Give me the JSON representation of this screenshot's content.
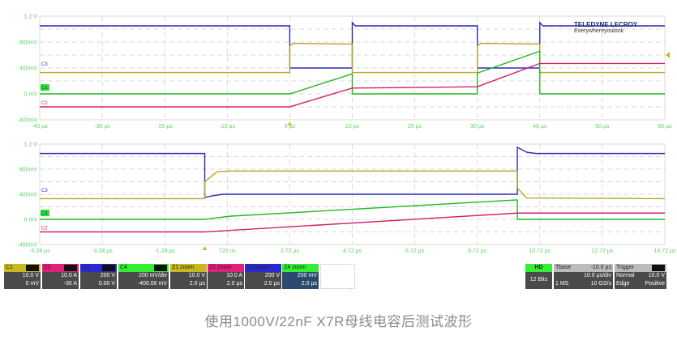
{
  "chart_data": [
    {
      "type": "line",
      "panel": "overview",
      "xlim": [
        -40,
        60
      ],
      "ylim": [
        -400,
        1200
      ],
      "grid": true,
      "x_tick_labels": [
        "-40 µs",
        "-30 µs",
        "-20 µs",
        "-10 µs",
        "0 µs",
        "10 µs",
        "20 µs",
        "30 µs",
        "40 µs",
        "50 µs",
        "60 µs"
      ],
      "x_ticks": [
        -40,
        -30,
        -20,
        -10,
        0,
        10,
        20,
        30,
        40,
        50,
        60
      ],
      "y_tick_labels": [
        "1.2 V",
        "800mV",
        "400mV",
        "0 mV",
        "-400mV"
      ],
      "y_ticks": [
        1200,
        800,
        400,
        0,
        -400
      ],
      "series": [
        {
          "channel": "C3",
          "color": "#2a2ab8",
          "points": [
            [
              -40,
              1050
            ],
            [
              0,
              1050
            ],
            [
              0,
              400
            ],
            [
              10,
              400
            ],
            [
              10,
              1100
            ],
            [
              10.5,
              1050
            ],
            [
              30,
              1050
            ],
            [
              30,
              400
            ],
            [
              40,
              400
            ],
            [
              40,
              1100
            ],
            [
              40.5,
              1050
            ],
            [
              60,
              1050
            ]
          ]
        },
        {
          "channel": "C1",
          "color": "#b8a820",
          "points": [
            [
              -40,
              330
            ],
            [
              0,
              330
            ],
            [
              0,
              740
            ],
            [
              0.6,
              780
            ],
            [
              10,
              770
            ],
            [
              10,
              330
            ],
            [
              30,
              330
            ],
            [
              30,
              740
            ],
            [
              30.6,
              780
            ],
            [
              40,
              770
            ],
            [
              40,
              330
            ],
            [
              60,
              330
            ]
          ]
        },
        {
          "channel": "C4",
          "color": "#22b822",
          "points": [
            [
              -40,
              0
            ],
            [
              0,
              0
            ],
            [
              10,
              310
            ],
            [
              10,
              0
            ],
            [
              30,
              0
            ],
            [
              30,
              320
            ],
            [
              40,
              660
            ],
            [
              40,
              0
            ],
            [
              60,
              0
            ]
          ]
        },
        {
          "channel": "C2",
          "color": "#d0206a",
          "points": [
            [
              -40,
              -200
            ],
            [
              0,
              -200
            ],
            [
              10,
              90
            ],
            [
              30,
              110
            ],
            [
              40,
              470
            ],
            [
              60,
              470
            ]
          ]
        }
      ]
    },
    {
      "type": "line",
      "panel": "zoom",
      "xlim": [
        -5.28,
        14.72
      ],
      "ylim": [
        -400,
        1200
      ],
      "grid": true,
      "x_tick_labels": [
        "-5.28 µs",
        "-3.28 µs",
        "-1.28 µs",
        "720 ns",
        "2.72 µs",
        "4.72 µs",
        "6.72 µs",
        "8.72 µs",
        "10.72 µs",
        "12.72 µs",
        "14.72 µs"
      ],
      "x_ticks": [
        -5.28,
        -3.28,
        -1.28,
        0.72,
        2.72,
        4.72,
        6.72,
        8.72,
        10.72,
        12.72,
        14.72
      ],
      "y_tick_labels": [
        "1.2 V",
        "800mV",
        "400mV",
        "0 mV",
        "-400mV"
      ],
      "y_ticks": [
        1200,
        800,
        400,
        0,
        -400
      ],
      "series": [
        {
          "channel": "C3",
          "color": "#2a2ab8",
          "points": [
            [
              -5.28,
              1050
            ],
            [
              0,
              1050
            ],
            [
              0,
              350
            ],
            [
              0.3,
              380
            ],
            [
              0.6,
              400
            ],
            [
              10,
              400
            ],
            [
              10,
              1150
            ],
            [
              10.3,
              1070
            ],
            [
              10.6,
              1050
            ],
            [
              14.72,
              1050
            ]
          ]
        },
        {
          "channel": "C1",
          "color": "#b8a820",
          "points": [
            [
              -5.28,
              330
            ],
            [
              0,
              330
            ],
            [
              0,
              600
            ],
            [
              0.4,
              760
            ],
            [
              0.8,
              770
            ],
            [
              10,
              770
            ],
            [
              10,
              500
            ],
            [
              10.3,
              340
            ],
            [
              14.72,
              330
            ]
          ]
        },
        {
          "channel": "C4",
          "color": "#22b822",
          "points": [
            [
              -5.28,
              0
            ],
            [
              0,
              0
            ],
            [
              0.8,
              50
            ],
            [
              10,
              310
            ],
            [
              10,
              0
            ],
            [
              14.72,
              0
            ]
          ]
        },
        {
          "channel": "C2",
          "color": "#d0206a",
          "points": [
            [
              -5.28,
              -200
            ],
            [
              0,
              -200
            ],
            [
              10,
              100
            ],
            [
              14.72,
              100
            ]
          ]
        }
      ]
    }
  ],
  "channels": [
    {
      "label": "C1",
      "color": "#c8b820",
      "line1": "10.0 V",
      "line2": "0 mV"
    },
    {
      "label": "C2",
      "color": "#e0207a",
      "line1": "10.0 A",
      "line2": "-30 A"
    },
    {
      "label": "C3",
      "color": "#2a2ad0",
      "line1": "200 V",
      "line2": "0.00 V"
    },
    {
      "label": "C4",
      "color": "#33ee33",
      "line1": "200 mV/div",
      "line2": "-400.00 mV"
    },
    {
      "label": "Z1 zoom",
      "color": "#c8b820",
      "line1": "10.0 V",
      "line2": "2.0 µs"
    },
    {
      "label": "Z2 zoom",
      "color": "#e0207a",
      "line1": "10.0 A",
      "line2": "2.0 µs"
    },
    {
      "label": "Z3 zoom",
      "color": "#2a2ad0",
      "line1": "200 V",
      "line2": "2.0 µs"
    },
    {
      "label": "Z4 zoom",
      "color": "#33ee33",
      "line1": "200 mV",
      "line2": "2.0 µs"
    }
  ],
  "hd": {
    "label": "HD",
    "bits": "12 Bits"
  },
  "timebase": {
    "label": "Tbase",
    "delay": "-10.0 µs",
    "div": "10.0 µs/div",
    "samples": "1 MS",
    "rate": "10 GS/s"
  },
  "trigger": {
    "label": "Trigger",
    "mode": "Normal",
    "level": "10.0 V",
    "type": "Edge",
    "slope": "Positive"
  },
  "logo": {
    "brand": "TELEDYNE LECROY",
    "tagline": "Everywhereyoulook"
  },
  "markers": {
    "c3": "C3",
    "c4": "C4",
    "c2": "C2"
  },
  "caption": "使用1000V/22nF X7R母线电容后测试波形"
}
